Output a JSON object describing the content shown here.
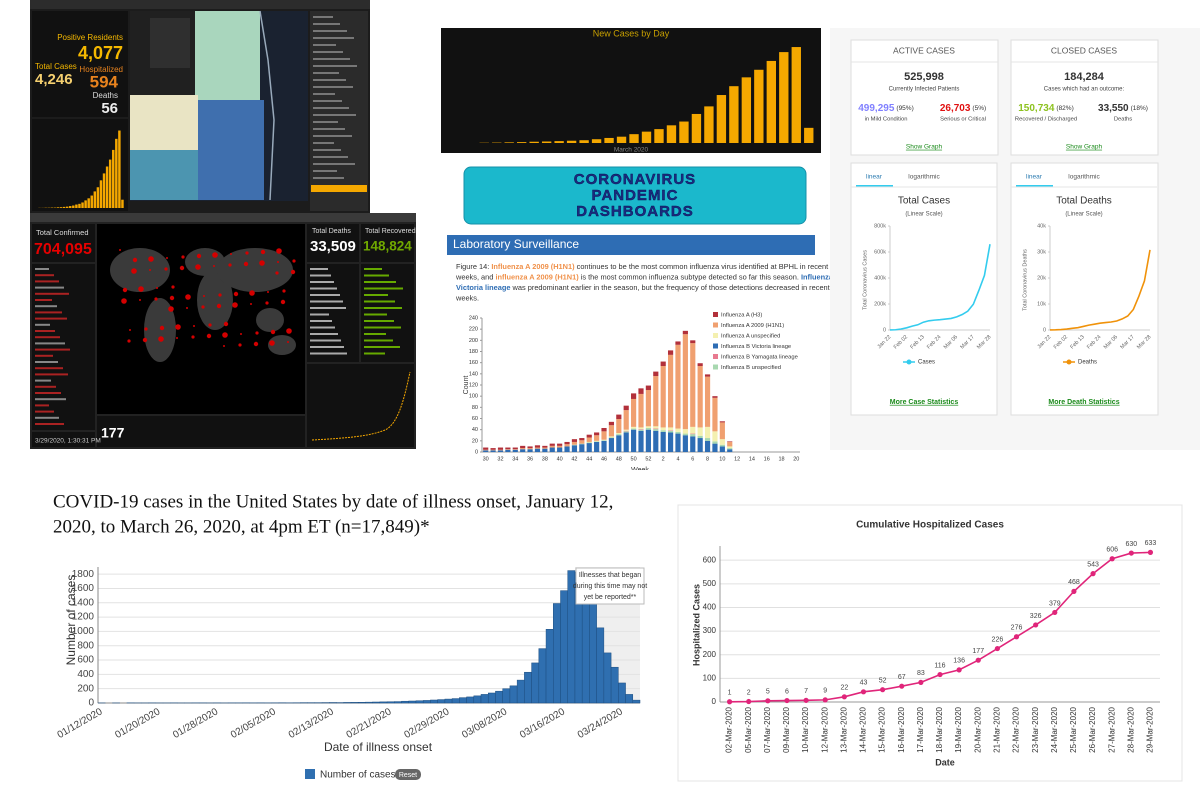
{
  "florida": {
    "positive_label": "Positive Residents",
    "positive": "4,077",
    "total_label": "Total Cases",
    "total": "4,246",
    "hosp_label": "Hospitalized",
    "hosp": "594",
    "deaths_label": "Deaths",
    "deaths": "56"
  },
  "jhu": {
    "confirmed_label": "Total Confirmed",
    "confirmed": "704,095",
    "deaths_label": "Total Deaths",
    "deaths": "33,509",
    "recovered_label": "Total Recovered",
    "recovered": "148,824",
    "countries": "177",
    "updated": "3/29/2020, 1:30:31 PM"
  },
  "center_title": [
    "CORONAVIRUS",
    "PANDEMIC",
    "DASHBOARDS"
  ],
  "lab": {
    "header": "Laboratory Surveillance",
    "figure_text": [
      [
        {
          "text": "Figure 14: "
        },
        {
          "text": "Influenza A 2009 (H1N1)",
          "color": "#f0914a"
        },
        {
          "text": " continues to be the most common influenza virus identified at BPHL in recent"
        }
      ],
      [
        {
          "text": "weeks, and "
        },
        {
          "text": "influenza A 2009 (H1N1)",
          "color": "#f0914a"
        },
        {
          "text": " is the most common influenza subtype detected so far this season. "
        },
        {
          "text": "Influenza B",
          "color": "#2e6db4"
        }
      ],
      [
        {
          "text": "Victoria lineage",
          "color": "#2e6db4"
        },
        {
          "text": " was predominant earlier in the season, but the frequency of those detections decreased in recent"
        }
      ],
      [
        {
          "text": "weeks."
        }
      ]
    ]
  },
  "worldometer": {
    "active": {
      "header": "ACTIVE CASES",
      "total": "525,998",
      "caption": "Currently Infected Patients",
      "left": {
        "value": "499,295",
        "pct": "(95%)",
        "label": "in Mild Condition",
        "color": "#8080ff"
      },
      "right": {
        "value": "26,703",
        "pct": "(5%)",
        "label": "Serious or Critical",
        "color": "#e01010"
      },
      "link": "Show Graph"
    },
    "closed": {
      "header": "CLOSED CASES",
      "total": "184,284",
      "caption": "Cases which had an outcome:",
      "left": {
        "value": "150,734",
        "pct": "(82%)",
        "label": "Recovered / Discharged",
        "color": "#8dc21f"
      },
      "right": {
        "value": "33,550",
        "pct": "(18%)",
        "label": "Deaths",
        "color": "#333333"
      },
      "link": "Show Graph"
    }
  },
  "chart_data": [
    {
      "type": "bar",
      "color": "#f5a800",
      "ylim": [
        0,
        600
      ],
      "values": [
        1,
        1,
        2,
        2,
        3,
        3,
        5,
        6,
        8,
        10,
        14,
        18,
        25,
        30,
        40,
        55,
        70,
        90,
        120,
        150,
        200,
        250,
        300,
        350,
        420,
        500,
        560,
        60
      ]
    },
    {
      "type": "bar",
      "title": "New Cases by Day",
      "xlabel": "March 2020",
      "color": "#f5a800",
      "ylim": [
        0,
        800
      ],
      "values": [
        2,
        3,
        5,
        7,
        10,
        12,
        15,
        18,
        22,
        30,
        40,
        50,
        70,
        90,
        110,
        140,
        170,
        230,
        290,
        380,
        450,
        520,
        580,
        650,
        720,
        760,
        120
      ]
    },
    {
      "type": "stacked_bar",
      "ylabel": "Count",
      "xlabel": "Week",
      "ylim": [
        0,
        240
      ],
      "yticks": [
        0,
        20,
        40,
        60,
        80,
        100,
        120,
        140,
        160,
        180,
        200,
        220,
        240
      ],
      "grid": false,
      "categories": [
        "30",
        null,
        "32",
        null,
        "34",
        null,
        "36",
        null,
        "38",
        null,
        "40",
        null,
        "42",
        null,
        "44",
        null,
        "46",
        null,
        "48",
        null,
        "50",
        null,
        "52",
        null,
        "2",
        null,
        "4",
        null,
        "6",
        null,
        "8",
        null,
        "10",
        null,
        "12",
        null,
        "14",
        null,
        "16",
        null,
        "18",
        null,
        "20"
      ],
      "series": [
        {
          "name": "Influenza A (H3)",
          "color": "#b2303a",
          "values": [
            4,
            3,
            4,
            3,
            3,
            4,
            3,
            4,
            3,
            4,
            4,
            4,
            5,
            4,
            5,
            5,
            6,
            6,
            8,
            8,
            10,
            10,
            8,
            8,
            8,
            8,
            6,
            6,
            5,
            5,
            4,
            3,
            2,
            1,
            null,
            null,
            null,
            null,
            null,
            null,
            null,
            null,
            null
          ]
        },
        {
          "name": "Influenza A 2009 (H1N1)",
          "color": "#f0a070",
          "values": [
            1,
            1,
            1,
            1,
            1,
            2,
            2,
            2,
            2,
            3,
            3,
            4,
            5,
            6,
            8,
            10,
            15,
            20,
            25,
            35,
            50,
            60,
            65,
            90,
            110,
            130,
            150,
            170,
            150,
            110,
            90,
            60,
            30,
            8,
            null,
            null,
            null,
            null,
            null,
            null,
            null,
            null,
            null
          ]
        },
        {
          "name": "Influenza A unspecified",
          "color": "#f4f0b0",
          "values": [
            0,
            0,
            0,
            0,
            0,
            0,
            0,
            0,
            0,
            0,
            0,
            0,
            0,
            0,
            1,
            1,
            1,
            2,
            2,
            2,
            3,
            3,
            3,
            4,
            5,
            5,
            6,
            8,
            12,
            15,
            20,
            18,
            10,
            3,
            null,
            null,
            null,
            null,
            null,
            null,
            null,
            null,
            null
          ]
        },
        {
          "name": "Influenza B Victoria lineage",
          "color": "#2e6db4",
          "values": [
            3,
            3,
            3,
            4,
            4,
            5,
            5,
            6,
            6,
            8,
            8,
            10,
            12,
            14,
            16,
            18,
            20,
            25,
            30,
            35,
            40,
            38,
            40,
            38,
            36,
            35,
            33,
            30,
            28,
            25,
            20,
            15,
            10,
            5,
            null,
            null,
            null,
            null,
            null,
            null,
            null,
            null,
            null
          ]
        },
        {
          "name": "Influenza B Yamagata lineage",
          "color": "#e87a90",
          "values": [
            0,
            0,
            0,
            0,
            0,
            0,
            0,
            0,
            0,
            0,
            0,
            0,
            0,
            0,
            0,
            0,
            0,
            0,
            0,
            1,
            0,
            1,
            0,
            1,
            0,
            1,
            0,
            0,
            1,
            0,
            0,
            0,
            0,
            0,
            null,
            null,
            null,
            null,
            null,
            null,
            null,
            null,
            null
          ]
        },
        {
          "name": "Influenza B unspecified",
          "color": "#a8d8b0",
          "values": [
            0,
            0,
            0,
            0,
            0,
            0,
            0,
            0,
            0,
            0,
            0,
            0,
            1,
            1,
            1,
            1,
            1,
            1,
            2,
            2,
            2,
            2,
            3,
            3,
            3,
            3,
            3,
            3,
            4,
            4,
            5,
            4,
            3,
            2,
            null,
            null,
            null,
            null,
            null,
            null,
            null,
            null,
            null
          ]
        }
      ]
    },
    {
      "type": "line",
      "tabs": [
        "linear",
        "logarithmic"
      ],
      "title": "Total Cases",
      "subtitle": "(Linear Scale)",
      "ylabel": "Total Coronavirus Cases",
      "legend": "Cases",
      "link": "More Case Statistics",
      "color": "#33ccee",
      "grid": false,
      "ylim": [
        0,
        800000
      ],
      "yticks": [
        0,
        {
          "value": 200000,
          "label": "200k"
        },
        {
          "value": 400000,
          "label": "400k"
        },
        {
          "value": 600000,
          "label": "600k"
        },
        {
          "value": 800000,
          "label": "800k"
        }
      ],
      "categories": [
        "Jan 22",
        null,
        null,
        "Feb 02",
        null,
        null,
        "Feb 13",
        null,
        null,
        "Feb 24",
        null,
        null,
        "Mar 06",
        null,
        null,
        "Mar 17",
        null,
        null,
        "Mar 28"
      ],
      "values": [
        555,
        2000,
        7800,
        17000,
        30000,
        40000,
        60000,
        71000,
        76000,
        79000,
        84000,
        89000,
        101000,
        119000,
        145000,
        198000,
        305000,
        420000,
        660000
      ]
    },
    {
      "type": "line",
      "tabs": [
        "linear",
        "logarithmic"
      ],
      "title": "Total Deaths",
      "subtitle": "(Linear Scale)",
      "ylabel": "Total Coronavirus Deaths",
      "legend": "Deaths",
      "link": "More Death Statistics",
      "color": "#f0920a",
      "grid": false,
      "ylim": [
        0,
        40000
      ],
      "yticks": [
        0,
        {
          "value": 10000,
          "label": "10k"
        },
        {
          "value": 20000,
          "label": "20k"
        },
        {
          "value": 30000,
          "label": "30k"
        },
        {
          "value": 40000,
          "label": "40k"
        }
      ],
      "categories": [
        "Jan 22",
        null,
        null,
        "Feb 02",
        null,
        null,
        "Feb 13",
        null,
        null,
        "Feb 24",
        null,
        null,
        "Mar 06",
        null,
        null,
        "Mar 17",
        null,
        null,
        "Mar 28"
      ],
      "values": [
        17,
        56,
        170,
        360,
        640,
        900,
        1370,
        1870,
        2240,
        2620,
        2860,
        3080,
        3460,
        4260,
        5400,
        7900,
        13000,
        18900,
        30800
      ]
    },
    {
      "type": "bar",
      "title": [
        "COVID-19 cases in the United States by date of illness onset, January 12,",
        "2020, to March 26, 2020, at 4pm ET (n=17,849)*"
      ],
      "ylabel": "Number of cases",
      "xlabel": "Date of illness onset",
      "legend": "Number of cases",
      "reset": "Reset",
      "annotation": [
        "Illnesses that began",
        "during this time may not",
        "yet be reported**"
      ],
      "color": "#2f6fb0",
      "grid": true,
      "ylim": [
        0,
        1900
      ],
      "yticks": [
        0,
        200,
        400,
        600,
        800,
        1000,
        1200,
        1400,
        1600,
        1800
      ],
      "categories": [
        "01/12/2020",
        null,
        null,
        null,
        null,
        null,
        null,
        null,
        "01/20/2020",
        null,
        null,
        null,
        null,
        null,
        null,
        null,
        "01/28/2020",
        null,
        null,
        null,
        null,
        null,
        null,
        null,
        "02/05/2020",
        null,
        null,
        null,
        null,
        null,
        null,
        null,
        "02/13/2020",
        null,
        null,
        null,
        null,
        null,
        null,
        null,
        "02/21/2020",
        null,
        null,
        null,
        null,
        null,
        null,
        null,
        "02/29/2020",
        null,
        null,
        null,
        null,
        null,
        null,
        null,
        "03/08/2020",
        null,
        null,
        null,
        null,
        null,
        null,
        null,
        "03/16/2020",
        null,
        null,
        null,
        null,
        null,
        null,
        null,
        "03/24/2020",
        null,
        null
      ],
      "values": [
        1,
        0,
        1,
        0,
        2,
        1,
        1,
        2,
        1,
        1,
        2,
        1,
        1,
        2,
        2,
        1,
        2,
        1,
        2,
        2,
        3,
        2,
        3,
        2,
        3,
        4,
        3,
        4,
        5,
        5,
        5,
        6,
        7,
        6,
        8,
        9,
        10,
        12,
        14,
        16,
        18,
        20,
        25,
        28,
        32,
        36,
        42,
        48,
        55,
        62,
        75,
        85,
        100,
        120,
        140,
        165,
        200,
        240,
        320,
        430,
        560,
        760,
        1030,
        1390,
        1570,
        1850,
        1830,
        1800,
        1400,
        1050,
        700,
        500,
        280,
        120,
        40
      ]
    },
    {
      "type": "line",
      "title": "Cumulative Hospitalized Cases",
      "ylabel": "Hospitalized Cases",
      "xlabel": "Date",
      "color": "#e0257a",
      "markers": true,
      "data_labels": true,
      "grid": true,
      "ylim": [
        0,
        660
      ],
      "yticks": [
        0,
        100,
        200,
        300,
        400,
        500,
        600
      ],
      "categories": [
        "02-Mar-2020",
        "05-Mar-2020",
        "07-Mar-2020",
        "09-Mar-2020",
        "10-Mar-2020",
        "12-Mar-2020",
        "13-Mar-2020",
        "14-Mar-2020",
        "15-Mar-2020",
        "16-Mar-2020",
        "17-Mar-2020",
        "18-Mar-2020",
        "19-Mar-2020",
        "20-Mar-2020",
        "21-Mar-2020",
        "22-Mar-2020",
        "23-Mar-2020",
        "24-Mar-2020",
        "25-Mar-2020",
        "26-Mar-2020",
        "27-Mar-2020",
        "28-Mar-2020",
        "29-Mar-2020"
      ],
      "values": [
        1,
        2,
        5,
        6,
        7,
        9,
        22,
        43,
        52,
        67,
        83,
        116,
        136,
        177,
        226,
        276,
        326,
        379,
        468,
        543,
        606,
        630,
        633
      ]
    }
  ]
}
